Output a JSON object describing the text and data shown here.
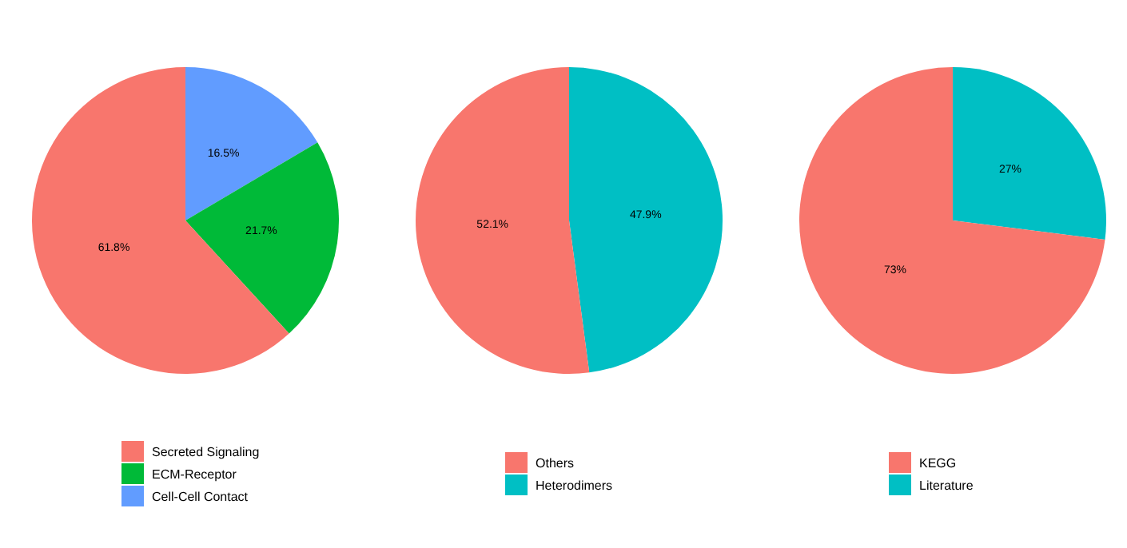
{
  "chart_data": [
    {
      "type": "pie",
      "categories": [
        "Secreted Signaling",
        "ECM-Receptor",
        "Cell-Cell Contact"
      ],
      "values": [
        61.8,
        21.7,
        16.5
      ],
      "colors": [
        "#f8766d",
        "#00ba38",
        "#619cff"
      ],
      "value_labels": [
        "61.8%",
        "21.7%",
        "16.5%"
      ],
      "legend": "bottom"
    },
    {
      "type": "pie",
      "categories": [
        "Others",
        "Heterodimers"
      ],
      "values": [
        52.1,
        47.9
      ],
      "colors": [
        "#f8766d",
        "#00bfc4"
      ],
      "value_labels": [
        "52.1%",
        "47.9%"
      ],
      "legend": "bottom"
    },
    {
      "type": "pie",
      "categories": [
        "KEGG",
        "Literature"
      ],
      "values": [
        73,
        27
      ],
      "colors": [
        "#f8766d",
        "#00bfc4"
      ],
      "value_labels": [
        "73%",
        "27%"
      ],
      "legend": "bottom"
    }
  ]
}
